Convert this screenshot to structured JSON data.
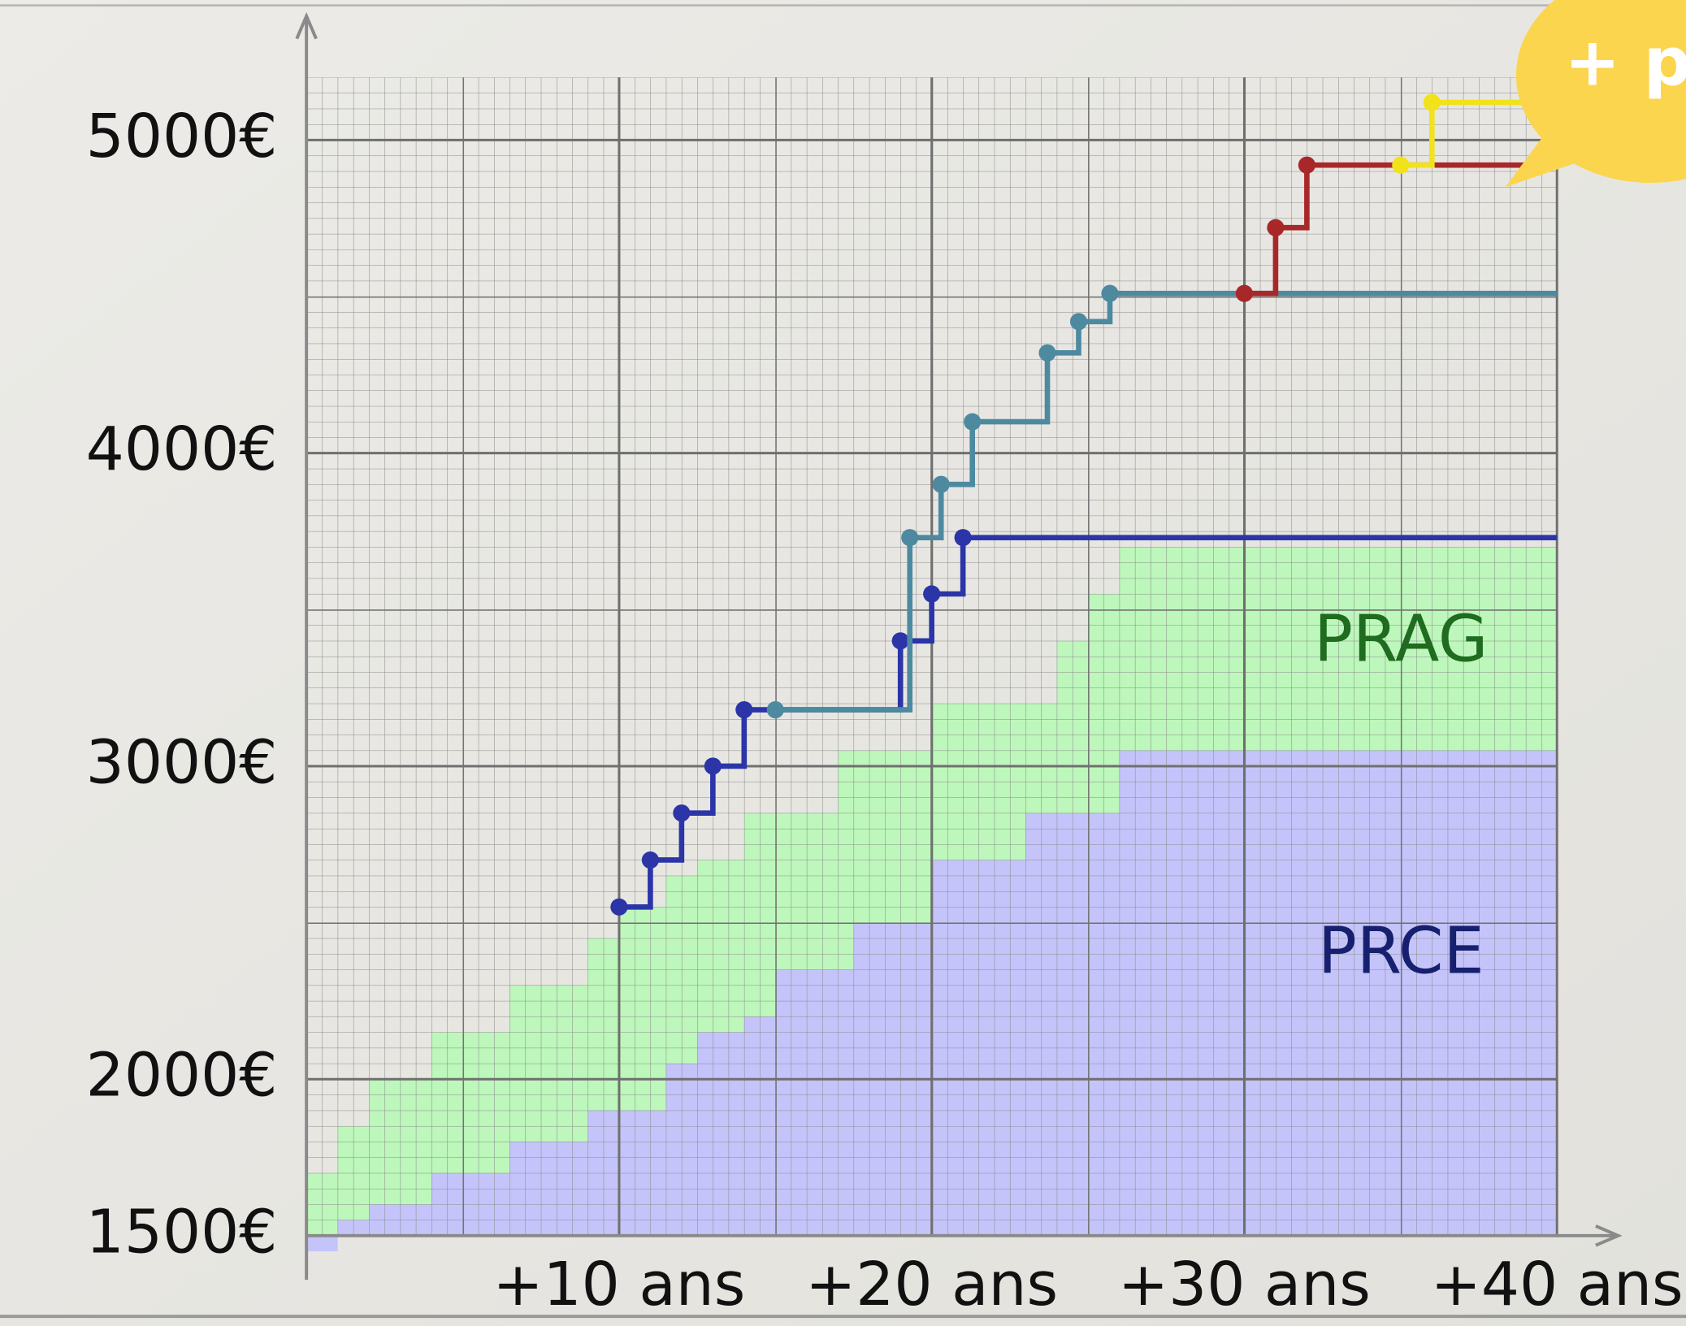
{
  "chart_data": {
    "type": "step",
    "xlim": [
      0,
      40
    ],
    "ylim": [
      1500,
      5200
    ],
    "xticks": [
      {
        "value": 10,
        "label": "+10 ans"
      },
      {
        "value": 20,
        "label": "+20 ans"
      },
      {
        "value": 30,
        "label": "+30 ans"
      },
      {
        "value": 40,
        "label": "+40 ans"
      }
    ],
    "yticks": [
      {
        "value": 1500,
        "label": "1500€"
      },
      {
        "value": 2000,
        "label": "2000€"
      },
      {
        "value": 3000,
        "label": "3000€"
      },
      {
        "value": 4000,
        "label": "4000€"
      },
      {
        "value": 5000,
        "label": "5000€"
      }
    ],
    "areas": [
      {
        "name": "PRAG",
        "color": "#bdf7bb",
        "label_color": "#1f6b1f",
        "x": [
          0,
          1,
          2,
          4,
          6.5,
          9,
          10,
          11.5,
          12.5,
          14,
          17,
          20,
          24,
          25,
          26
        ],
        "values": [
          1700,
          1850,
          2000,
          2150,
          2300,
          2450,
          2550,
          2650,
          2700,
          2850,
          3050,
          3200,
          3400,
          3550,
          3700
        ]
      },
      {
        "name": "PRCE",
        "color": "#c4c4fa",
        "label_color": "#16206e",
        "x": [
          0,
          1,
          2,
          4,
          6.5,
          9,
          11.5,
          12.5,
          14,
          15,
          17.5,
          20,
          23,
          26
        ],
        "values": [
          1450,
          1550,
          1600,
          1700,
          1800,
          1900,
          2050,
          2150,
          2200,
          2350,
          2500,
          2700,
          2850,
          3050
        ]
      }
    ],
    "series": [
      {
        "color": "#2b35a8",
        "x": [
          10,
          11,
          12,
          13,
          14,
          19,
          20,
          21
        ],
        "values": [
          2550,
          2700,
          2850,
          3000,
          3180,
          3400,
          3550,
          3730
        ]
      },
      {
        "color": "#4d8aa0",
        "x": [
          15,
          19.3,
          20.3,
          21.3,
          23.7,
          24.7,
          25.7
        ],
        "values": [
          3180,
          3730,
          3900,
          4100,
          4320,
          4420,
          4510
        ]
      },
      {
        "color": "#a8282a",
        "x": [
          30,
          31,
          32
        ],
        "values": [
          4510,
          4720,
          4920
        ]
      },
      {
        "color": "#f2e21c",
        "x": [
          35,
          36
        ],
        "values": [
          4920,
          5120
        ]
      }
    ],
    "annotation": "+ p"
  }
}
